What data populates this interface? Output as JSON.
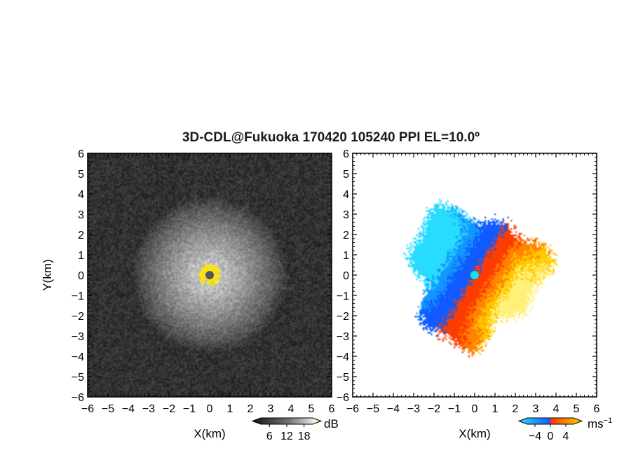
{
  "title": "3D-CDL@Fukuoka 170420 105240 PPI EL=10.0º",
  "chart_data": [
    {
      "type": "heatmap",
      "panel": "left",
      "quantity": "reflectivity (grayscale)",
      "xlabel": "X(km)",
      "ylabel": "Y(km)",
      "xlim": [
        -6,
        6
      ],
      "ylim": [
        -6,
        6
      ],
      "xticks": [
        "−6",
        "−5",
        "−4",
        "−3",
        "−2",
        "−1",
        "0",
        "1",
        "2",
        "3",
        "4",
        "5",
        "6"
      ],
      "yticks": [
        "6",
        "5",
        "4",
        "3",
        "2",
        "1",
        "0",
        "−1",
        "−2",
        "−3",
        "−4",
        "−5",
        "−6"
      ],
      "colorbar": {
        "unit": "dB",
        "ticks": [
          "6",
          "12",
          "18"
        ],
        "range": [
          3,
          21
        ]
      },
      "colors": {
        "background": "#262626",
        "echo_max": "#f0f0f0",
        "near_field": "#ffe600",
        "center_marker": "#555555"
      }
    },
    {
      "type": "heatmap",
      "panel": "right",
      "quantity": "Doppler velocity",
      "xlabel": "X(km)",
      "xlim": [
        -6,
        6
      ],
      "ylim": [
        -6,
        6
      ],
      "xticks": [
        "−6",
        "−5",
        "−4",
        "−3",
        "−2",
        "−1",
        "0",
        "1",
        "2",
        "3",
        "4",
        "5",
        "6"
      ],
      "yticks": [
        "6",
        "5",
        "4",
        "3",
        "2",
        "1",
        "0",
        "−1",
        "−2",
        "−3",
        "−4",
        "−5",
        "−6"
      ],
      "colorbar": {
        "unit": "ms",
        "unit_exponent": "−1",
        "ticks": [
          "−4",
          "0",
          "4"
        ],
        "range": [
          -6,
          6
        ]
      },
      "colors": {
        "approaching": "#1060ff",
        "strong_approaching": "#22e0ff",
        "receding": "#ff3300",
        "strong_receding": "#ffd200",
        "center_marker": "#1ce0e0"
      }
    }
  ]
}
